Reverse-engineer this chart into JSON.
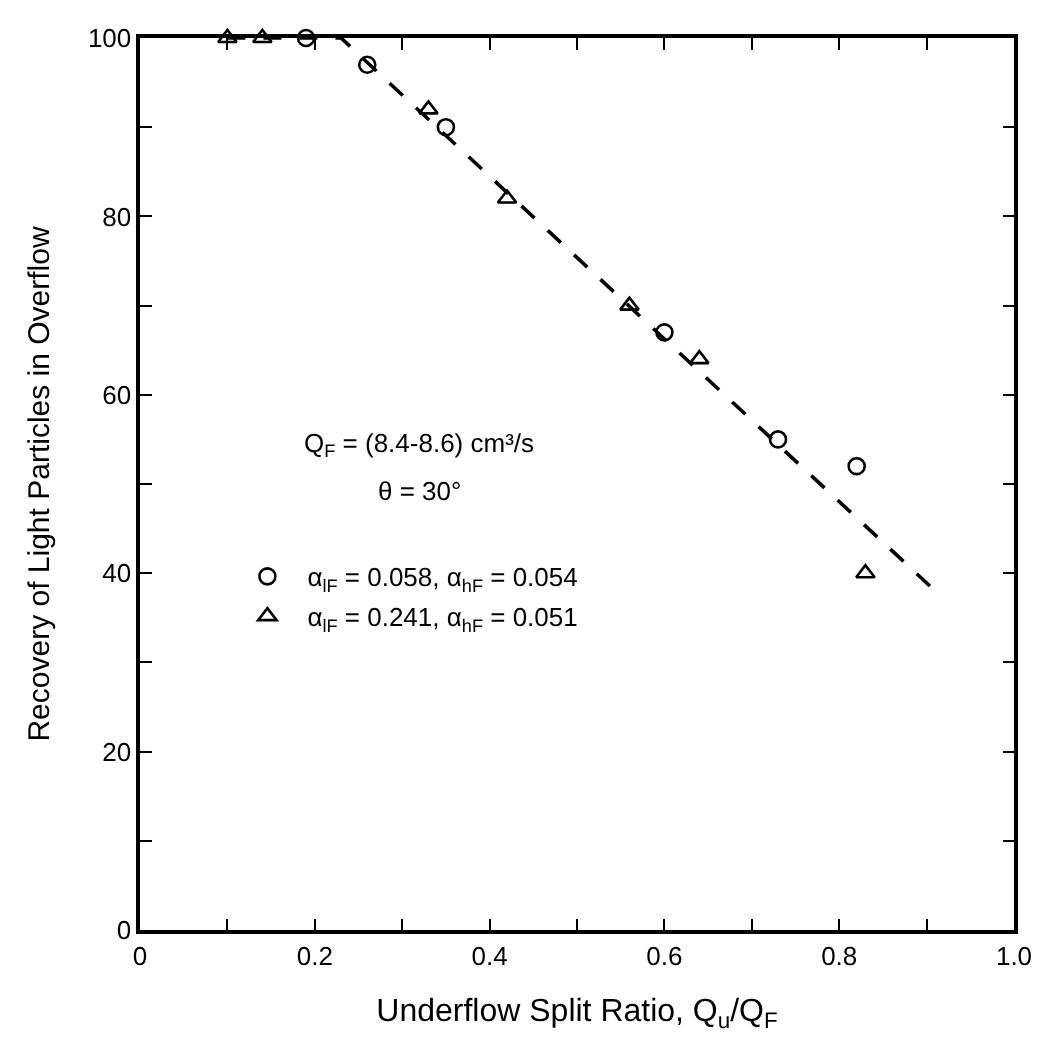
{
  "chart_data": {
    "type": "scatter",
    "xlabel": "Underflow Split Ratio, Q$_{u}$/Q$_{F}$",
    "ylabel": "Recovery of Light Particles in Overflow",
    "xlim": [
      0,
      1.0
    ],
    "ylim": [
      0,
      100
    ],
    "xticks": [
      0,
      {
        "value": 0.1,
        "label": null
      },
      0.2,
      {
        "value": 0.3,
        "label": null
      },
      0.4,
      {
        "value": 0.5,
        "label": null
      },
      0.6,
      {
        "value": 0.7,
        "label": null
      },
      0.8,
      {
        "value": 0.9,
        "label": null
      },
      {
        "value": 1.0,
        "label": "1.0"
      }
    ],
    "yticks": [
      0,
      {
        "value": 10,
        "label": null
      },
      20,
      {
        "value": 30,
        "label": null
      },
      40,
      {
        "value": 50,
        "label": null
      },
      60,
      {
        "value": 70,
        "label": null
      },
      80,
      {
        "value": 90,
        "label": null
      },
      100
    ],
    "legend": "left",
    "annotations": [
      "Q$_{F}$ = (8.4-8.6) cm³/s",
      "θ = 30°"
    ],
    "series": [
      {
        "name": "α$_{lF}$ = 0.058, α$_{hF}$ = 0.054",
        "color": "#000000",
        "marker": "circle",
        "x": [
          0.19,
          0.26,
          0.35,
          0.6,
          0.73,
          0.82
        ],
        "values": [
          100,
          97,
          90,
          67,
          55,
          52
        ]
      },
      {
        "name": "α$_{lF}$ = 0.241, α$_{hF}$ = 0.051",
        "color": "#000000",
        "marker": "triangle",
        "x": [
          0.1,
          0.14,
          0.33,
          0.42,
          0.56,
          0.64,
          0.83
        ],
        "values": [
          100,
          100,
          92,
          82,
          70,
          64,
          40
        ]
      },
      {
        "type": "line",
        "color": "#000000",
        "line_style": "dashed",
        "x": [
          0.1,
          0.23,
          0.91
        ],
        "values": [
          100,
          100,
          38
        ]
      }
    ]
  }
}
